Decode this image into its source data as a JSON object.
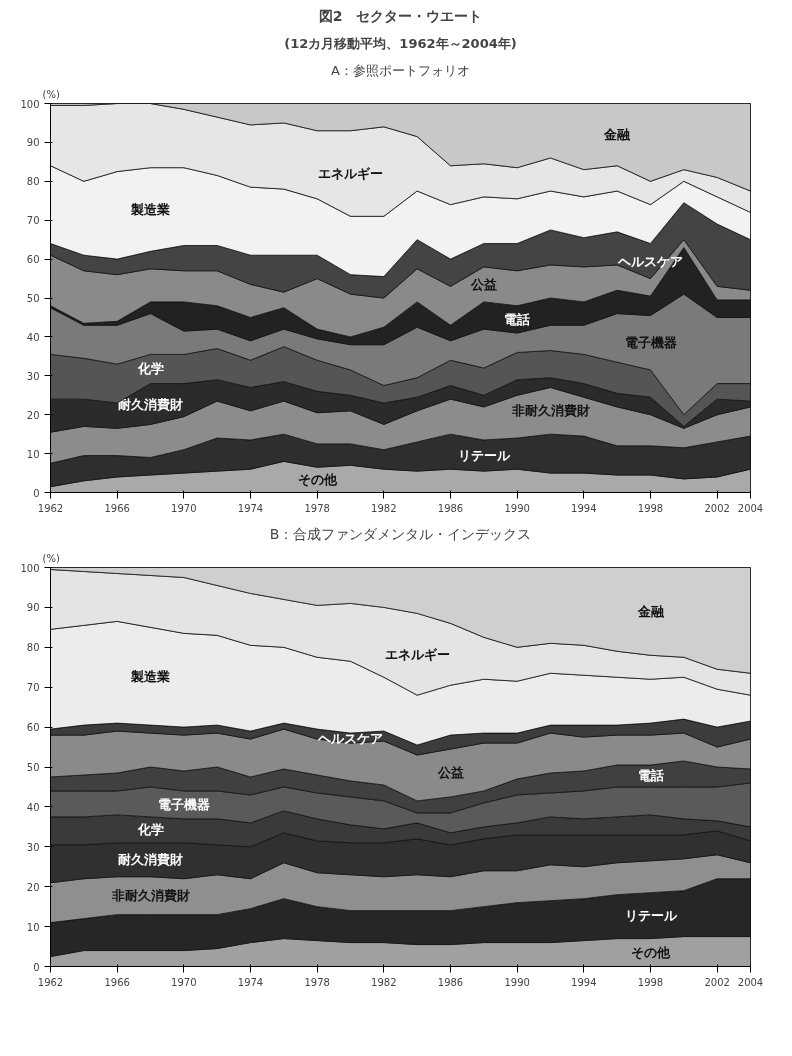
{
  "chart_data": [
    {
      "type": "area",
      "stacked": true,
      "title": "図2　セクター・ウエート",
      "subtitle": "(12カ月移動平均、1962年～2004年)",
      "annotations": [
        "A：参照ポートフォリオ"
      ],
      "ylabel": "(%)",
      "x": [
        1962,
        1964,
        1966,
        1968,
        1970,
        1972,
        1974,
        1976,
        1978,
        1980,
        1982,
        1984,
        1986,
        1988,
        1990,
        1992,
        1994,
        1996,
        1998,
        2000,
        2002,
        2004
      ],
      "xlim": [
        1962,
        2004
      ],
      "xticks": [
        1962,
        1966,
        1970,
        1974,
        1978,
        1982,
        1986,
        1990,
        1994,
        1998,
        2002,
        2004
      ],
      "ylim": [
        0,
        100
      ],
      "yticks": [
        0,
        10,
        20,
        30,
        40,
        50,
        60,
        70,
        80,
        90,
        100
      ],
      "grid": false,
      "legend": false,
      "series": [
        {
          "name": "その他",
          "color": "#a9a9a9",
          "values": [
            1.5,
            3,
            4,
            4.5,
            5,
            5.5,
            6,
            8,
            6.5,
            7,
            6,
            5.5,
            6,
            5.5,
            6,
            5,
            5,
            4.5,
            4.5,
            3.5,
            4,
            6
          ]
        },
        {
          "name": "リテール",
          "color": "#2e2e2e",
          "values": [
            6,
            6.5,
            5.5,
            4.5,
            6,
            8.5,
            7.5,
            7,
            6,
            5.5,
            5,
            7.5,
            9,
            8,
            8,
            10,
            9.5,
            7.5,
            7.5,
            8,
            9,
            8.5
          ]
        },
        {
          "name": "非耐久消費財",
          "color": "#8c8c8c",
          "values": [
            8,
            7.5,
            7,
            8.5,
            8.5,
            9.5,
            7.5,
            8.5,
            8,
            8.5,
            6.5,
            8,
            9,
            8.5,
            11,
            12,
            10,
            10,
            8,
            5,
            7,
            7.5
          ]
        },
        {
          "name": "耐久消費財",
          "color": "#2b2b2b",
          "values": [
            8.5,
            7,
            6.5,
            10.5,
            8.5,
            5.5,
            6,
            5,
            5.5,
            4,
            5.5,
            3.5,
            3.5,
            3,
            4,
            2.5,
            3.5,
            3.5,
            4.5,
            0.5,
            4,
            1.5
          ]
        },
        {
          "name": "化学",
          "color": "#555555",
          "values": [
            11.5,
            10.5,
            10,
            7.5,
            7.5,
            8,
            7,
            9,
            8,
            6.5,
            4.5,
            5,
            6.5,
            7,
            7,
            7,
            7.5,
            8,
            7,
            3,
            4,
            4.5
          ]
        },
        {
          "name": "電子機器",
          "color": "#7a7a7a",
          "values": [
            12,
            8.5,
            10,
            10.5,
            6,
            5,
            5,
            4.5,
            5.5,
            6.5,
            10.5,
            13,
            5,
            10,
            5,
            6.5,
            7.5,
            12.5,
            14,
            31,
            17,
            17
          ]
        },
        {
          "name": "電話",
          "color": "#222222",
          "values": [
            0.5,
            0.5,
            1,
            3,
            7.5,
            6,
            6,
            5.5,
            2.5,
            2,
            4.5,
            6.5,
            4,
            7,
            7,
            7,
            6,
            6,
            5,
            12,
            4.5,
            4.5
          ]
        },
        {
          "name": "公益",
          "color": "#8a8a8a",
          "values": [
            13,
            13.5,
            12,
            8.5,
            8,
            9,
            8.5,
            4,
            13,
            11,
            7.5,
            8.5,
            10,
            9,
            9,
            8.5,
            9,
            6.5,
            4.5,
            2,
            3.5,
            2.5
          ]
        },
        {
          "name": "ヘルスケア",
          "color": "#444444",
          "values": [
            3,
            4,
            4,
            4.5,
            6.5,
            6.5,
            7.5,
            9.5,
            6,
            5,
            5.5,
            7.5,
            7,
            6,
            7,
            9,
            7.5,
            8.5,
            9,
            9.5,
            16,
            13
          ]
        },
        {
          "name": "製造業",
          "color": "#f2f2f2",
          "values": [
            20,
            19,
            22.5,
            21.5,
            20,
            18,
            17.5,
            17,
            14.5,
            15,
            15.5,
            12.5,
            14,
            12,
            11.5,
            10,
            10.5,
            10.5,
            10,
            5.5,
            7,
            7
          ]
        },
        {
          "name": "エネルギー",
          "color": "#e6e6e6",
          "values": [
            15.5,
            19.5,
            17.5,
            16.5,
            15,
            15,
            16,
            17,
            17.5,
            22,
            23,
            14,
            10,
            8.5,
            8,
            8.5,
            7,
            6.5,
            6,
            3,
            5,
            5.5
          ]
        },
        {
          "name": "金融",
          "color": "#c8c8c8",
          "values": [
            0.5,
            0.5,
            0,
            0,
            1.5,
            3.5,
            5.5,
            5,
            7,
            7,
            6,
            8.5,
            16,
            15.5,
            16.5,
            14,
            17,
            16,
            20,
            17,
            19,
            22.5
          ]
        }
      ]
    },
    {
      "type": "area",
      "stacked": true,
      "title": "B：合成ファンダメンタル・インデックス",
      "ylabel": "(%)",
      "x": [
        1962,
        1964,
        1966,
        1968,
        1970,
        1972,
        1974,
        1976,
        1978,
        1980,
        1982,
        1984,
        1986,
        1988,
        1990,
        1992,
        1994,
        1996,
        1998,
        2000,
        2002,
        2004
      ],
      "xlim": [
        1962,
        2004
      ],
      "xticks": [
        1962,
        1966,
        1970,
        1974,
        1978,
        1982,
        1986,
        1990,
        1994,
        1998,
        2002,
        2004
      ],
      "ylim": [
        0,
        100
      ],
      "yticks": [
        0,
        10,
        20,
        30,
        40,
        50,
        60,
        70,
        80,
        90,
        100
      ],
      "grid": false,
      "legend": false,
      "series": [
        {
          "name": "その他",
          "color": "#a0a0a0",
          "values": [
            2.5,
            4,
            4,
            4,
            4,
            4.5,
            6,
            7,
            6.5,
            6,
            6,
            5.5,
            5.5,
            6,
            6,
            6,
            6.5,
            7,
            7,
            7.5,
            7.5,
            7.5
          ]
        },
        {
          "name": "リテール",
          "color": "#262626",
          "values": [
            8.5,
            8,
            9,
            9,
            9,
            8.5,
            8.5,
            10,
            8.5,
            8,
            8,
            8.5,
            8.5,
            9,
            10,
            10.5,
            10.5,
            11,
            11.5,
            11.5,
            14.5,
            14.5
          ]
        },
        {
          "name": "非耐久消費財",
          "color": "#8f8f8f",
          "values": [
            10,
            10,
            9.5,
            9.5,
            9,
            10,
            7.5,
            9,
            8.5,
            9,
            8.5,
            9,
            8.5,
            9,
            8,
            9,
            8,
            8,
            8,
            8,
            6,
            4
          ]
        },
        {
          "name": "耐久消費財",
          "color": "#303030",
          "values": [
            9.5,
            8.5,
            8.5,
            8.5,
            9,
            7.5,
            8,
            7.5,
            8,
            8,
            8.5,
            9,
            8,
            8,
            9,
            7.5,
            8,
            7,
            6.5,
            6,
            6,
            5.5
          ]
        },
        {
          "name": "化学",
          "color": "#3a3a3a",
          "values": [
            7,
            7,
            7,
            6.5,
            6,
            6.5,
            6,
            5.5,
            5.5,
            4.5,
            3.5,
            4,
            3,
            3,
            3,
            4.5,
            4,
            4.5,
            5,
            4,
            2.5,
            3.5
          ]
        },
        {
          "name": "電子機器",
          "color": "#5a5a5a",
          "values": [
            6.5,
            6.5,
            6,
            7.5,
            7,
            7,
            7,
            6,
            6.5,
            7,
            7,
            2.5,
            5,
            6,
            7,
            6,
            7,
            7.5,
            7,
            8,
            8.5,
            11
          ]
        },
        {
          "name": "電話",
          "color": "#404040",
          "values": [
            3.5,
            4,
            4.5,
            5,
            5,
            6,
            4.5,
            4.5,
            4.5,
            4,
            4,
            3,
            4,
            3,
            4,
            5,
            5,
            5.5,
            5.5,
            6.5,
            5,
            3.5
          ]
        },
        {
          "name": "公益",
          "color": "#8a8a8a",
          "values": [
            10.5,
            10,
            10.5,
            8.5,
            9,
            8.5,
            9.5,
            10,
            9,
            9.5,
            11,
            11.5,
            12,
            12,
            9,
            10,
            8.5,
            7.5,
            7.5,
            7,
            5,
            7.5
          ]
        },
        {
          "name": "ヘルスケア",
          "color": "#3c3c3c",
          "values": [
            1.5,
            2.5,
            2,
            2,
            2,
            2,
            2,
            1.5,
            2.5,
            2.5,
            2.5,
            2.5,
            3.5,
            2.5,
            2.5,
            2,
            3,
            2.5,
            3,
            3.5,
            5,
            4.5
          ]
        },
        {
          "name": "製造業",
          "color": "#ececec",
          "values": [
            25,
            25,
            25.5,
            24.5,
            23.5,
            22.5,
            21.5,
            19,
            18,
            18,
            13.5,
            12.5,
            12.5,
            13.5,
            13,
            13,
            12.5,
            12,
            11,
            10.5,
            9.5,
            6.5
          ]
        },
        {
          "name": "エネルギー",
          "color": "#e4e4e4",
          "values": [
            15,
            13.5,
            12,
            13,
            14,
            12.5,
            13,
            12,
            13,
            14.5,
            17.5,
            20.5,
            15.5,
            10.5,
            8.5,
            7.5,
            7.5,
            6.5,
            6,
            5,
            5,
            5.5
          ]
        },
        {
          "name": "金融",
          "color": "#cfcfcf",
          "values": [
            0.5,
            1,
            1.5,
            2,
            2.5,
            4.5,
            6.5,
            8,
            9.5,
            9,
            10,
            11.5,
            14,
            17.5,
            20,
            19,
            19.5,
            21,
            22,
            22.5,
            25.5,
            26.5
          ]
        }
      ]
    }
  ]
}
